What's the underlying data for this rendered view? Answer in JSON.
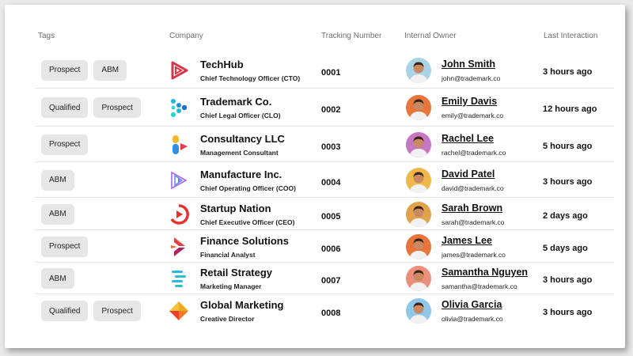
{
  "headers": {
    "tags": "Tags",
    "company": "Company",
    "tracking": "Tracking Number",
    "owner": "Internal Owner",
    "last": "Last Interaction"
  },
  "rows": [
    {
      "tags": [
        "Prospect",
        "ABM"
      ],
      "company": "TechHub",
      "role": "Chief Technology Officer (CTO)",
      "tracking": "0001",
      "owner": "John Smith",
      "email": "john@trademark.co",
      "last": "3 hours ago",
      "logo": "techhub-logo",
      "avatar_color": "#a9d3e6"
    },
    {
      "tags": [
        "Qualified",
        "Prospect"
      ],
      "company": "Trademark Co.",
      "role": "Chief Legal Officer (CLO)",
      "tracking": "0002",
      "owner": "Emily Davis",
      "email": "emily@trademark.co",
      "last": "12 hours ago",
      "logo": "trademark-logo",
      "avatar_color": "#e8763c"
    },
    {
      "tags": [
        "Prospect"
      ],
      "company": "Consultancy LLC",
      "role": "Management Consultant",
      "tracking": "0003",
      "owner": "Rachel Lee",
      "email": "rachel@trademark.co",
      "last": "5 hours ago",
      "logo": "consultancy-logo",
      "avatar_color": "#c776c6"
    },
    {
      "tags": [
        "ABM"
      ],
      "company": "Manufacture Inc.",
      "role": "Chief Operating Officer (COO)",
      "tracking": "0004",
      "owner": "David Patel",
      "email": "david@trademark.co",
      "last": "3 hours ago",
      "logo": "manufacture-logo",
      "avatar_color": "#f0b84a"
    },
    {
      "tags": [
        "ABM"
      ],
      "company": "Startup Nation",
      "role": "Chief Executive Officer (CEO)",
      "tracking": "0005",
      "owner": "Sarah Brown",
      "email": "sarah@trademark.co",
      "last": "2 days ago",
      "logo": "startup-logo",
      "avatar_color": "#e2a24a"
    },
    {
      "tags": [
        "Prospect"
      ],
      "company": "Finance Solutions",
      "role": "Financial Analyst",
      "tracking": "0006",
      "owner": "James Lee",
      "email": "james@trademark.co",
      "last": "5 days ago",
      "logo": "finance-logo",
      "avatar_color": "#e8743c"
    },
    {
      "tags": [
        "ABM"
      ],
      "company": "Retail Strategy",
      "role": "Marketing Manager",
      "tracking": "0007",
      "owner": "Samantha Nguyen",
      "email": "samantha@trademark.co",
      "last": "3 hours ago",
      "logo": "retail-logo",
      "avatar_color": "#ec8f7a"
    },
    {
      "tags": [
        "Qualified",
        "Prospect"
      ],
      "company": "Global Marketing",
      "role": "Creative Director",
      "tracking": "0008",
      "owner": "Olivia Garcia",
      "email": "olivia@trademark.co",
      "last": "3 hours ago",
      "logo": "global-logo",
      "avatar_color": "#8fc8e8"
    }
  ]
}
